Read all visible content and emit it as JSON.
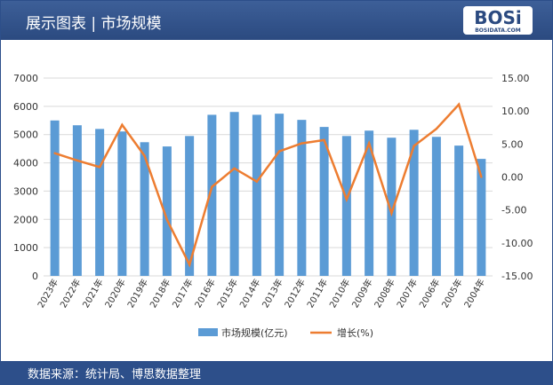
{
  "header": {
    "title": "展示图表 | 市场规模",
    "logo": "BOSi",
    "logo_sub": "BOSIDATA.COM"
  },
  "footer": {
    "source": "数据来源：统计局、博思数据整理"
  },
  "chart_data": {
    "type": "bar+line",
    "categories": [
      "2023年",
      "2022年",
      "2021年",
      "2020年",
      "2019年",
      "2018年",
      "2017年",
      "2016年",
      "2015年",
      "2014年",
      "2013年",
      "2012年",
      "2011年",
      "2010年",
      "2009年",
      "2008年",
      "2007年",
      "2006年",
      "2005年",
      "2004年"
    ],
    "series": [
      {
        "name": "市场规模(亿元)",
        "type": "bar",
        "axis": "left",
        "color": "#5b9bd5",
        "values": [
          5500,
          5330,
          5200,
          5110,
          4730,
          4580,
          4950,
          5700,
          5800,
          5700,
          5740,
          5520,
          5270,
          4950,
          5140,
          4890,
          5170,
          4920,
          4610,
          4140
        ]
      },
      {
        "name": "增长(%)",
        "type": "line",
        "axis": "right",
        "color": "#ed7d31",
        "values": [
          3.6,
          2.5,
          1.5,
          7.9,
          3.2,
          -6.5,
          -13.3,
          -1.5,
          1.3,
          -0.7,
          3.9,
          5.1,
          5.6,
          -3.4,
          5.1,
          -5.5,
          4.7,
          7.3,
          11.0,
          0.0
        ]
      }
    ],
    "left_axis": {
      "range": [
        0,
        7000
      ],
      "ticks": [
        "0",
        "1000",
        "2000",
        "3000",
        "4000",
        "5000",
        "6000",
        "7000"
      ]
    },
    "right_axis": {
      "range": [
        -15,
        15
      ],
      "ticks": [
        "-15.00",
        "-10.00",
        "-5.00",
        "0.00",
        "5.00",
        "10.00",
        "15.00"
      ]
    },
    "grid": true,
    "legend": "bottom"
  }
}
